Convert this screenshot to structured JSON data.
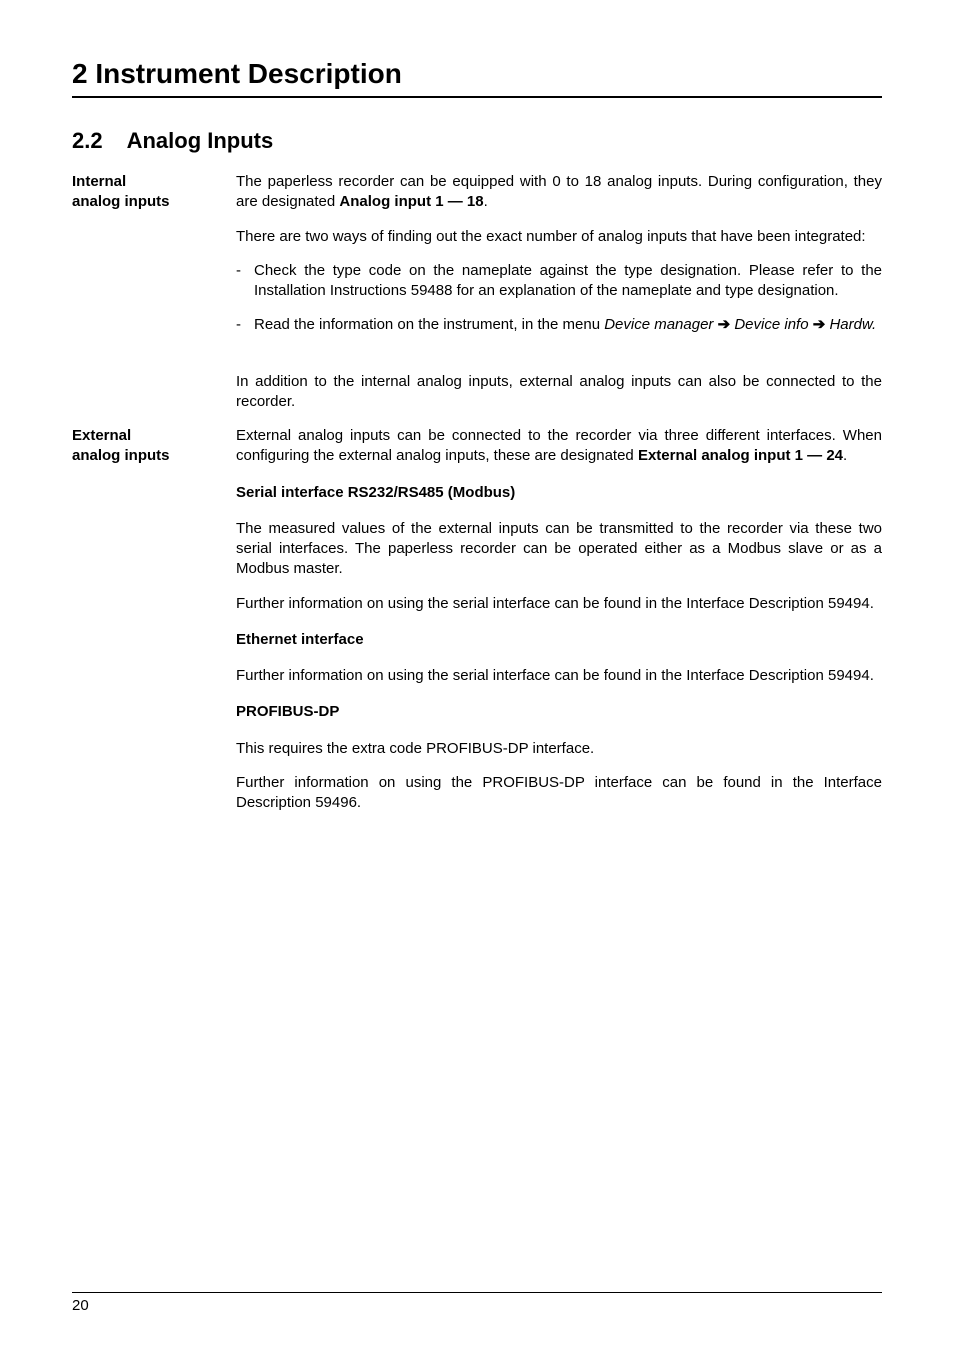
{
  "chapter": "2 Instrument Description",
  "section": {
    "number": "2.2",
    "title": "Analog Inputs"
  },
  "blocks": [
    {
      "side": [
        "Internal",
        "analog inputs"
      ],
      "body": [
        {
          "type": "para",
          "runs": [
            {
              "t": "The paperless recorder can be equipped with 0 to 18 analog inputs. During configuration, they are designated "
            },
            {
              "t": "Analog input 1 — 18",
              "bold": true
            },
            {
              "t": "."
            }
          ]
        },
        {
          "type": "para",
          "runs": [
            {
              "t": "There are two ways of finding out the exact number of analog inputs that have been integrated:"
            }
          ]
        },
        {
          "type": "bullet",
          "runs": [
            {
              "t": "Check the type code on the nameplate against the type designation. Please refer to the Installation Instructions 59488 for an explanation of the nameplate and type designation."
            }
          ]
        },
        {
          "type": "bullet",
          "runs": [
            {
              "t": "Read the information on the instrument, in the menu "
            },
            {
              "t": "Device manager ",
              "italic": true
            },
            {
              "t": "➔",
              "arrow": true
            },
            {
              "t": " Device info ",
              "italic": true
            },
            {
              "t": "➔",
              "arrow": true
            },
            {
              "t": "  Hardw.",
              "italic": true
            }
          ]
        },
        {
          "type": "spacer"
        },
        {
          "type": "para",
          "runs": [
            {
              "t": "In addition to the internal analog inputs, external analog inputs can also be connected to the recorder."
            }
          ]
        }
      ]
    },
    {
      "side": [
        "External",
        "analog inputs"
      ],
      "body": [
        {
          "type": "para",
          "runs": [
            {
              "t": "External analog inputs can be connected to the recorder via three different interfaces. When configuring the external analog inputs, these are designated "
            },
            {
              "t": "External analog input 1 — 24",
              "bold": true
            },
            {
              "t": "."
            }
          ]
        },
        {
          "type": "subhead",
          "runs": [
            {
              "t": "Serial interface RS232/RS485 (Modbus)"
            }
          ]
        },
        {
          "type": "para",
          "runs": [
            {
              "t": "The measured values of the external inputs can be transmitted to the recorder via these two serial interfaces. The paperless recorder can be operated either as a Modbus slave or as a Modbus master."
            }
          ]
        },
        {
          "type": "para",
          "runs": [
            {
              "t": "Further information on using the serial interface can be found in the Interface Description 59494."
            }
          ]
        },
        {
          "type": "subhead",
          "runs": [
            {
              "t": "Ethernet interface"
            }
          ]
        },
        {
          "type": "para",
          "runs": [
            {
              "t": "Further information on using the serial interface can be found in the Interface Description 59494."
            }
          ]
        },
        {
          "type": "subhead",
          "runs": [
            {
              "t": "PROFIBUS-DP"
            }
          ]
        },
        {
          "type": "para",
          "runs": [
            {
              "t": "This requires the extra code PROFIBUS-DP interface."
            }
          ]
        },
        {
          "type": "para",
          "runs": [
            {
              "t": "Further information on using the PROFIBUS-DP interface can be found in the Interface Description 59496."
            }
          ]
        }
      ]
    }
  ],
  "pageNumber": "20"
}
